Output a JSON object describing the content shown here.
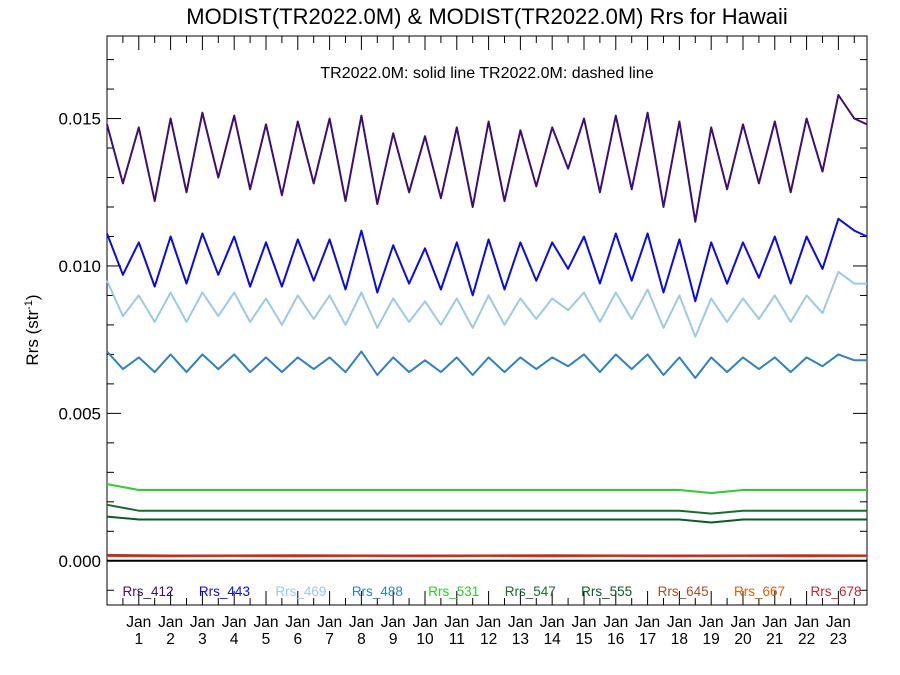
{
  "chart_data": {
    "type": "line",
    "title": "MODIST(TR2022.0M) & MODIST(TR2022.0M)  Rrs for Hawaii",
    "note": "TR2022.0M: solid line   TR2022.0M: dashed line",
    "ylabel": "Rrs (str",
    "ylabel_sup": "-1",
    "ylabel_close": ")",
    "xlabel": "",
    "ylim": [
      -0.0015,
      0.0178
    ],
    "xlim": [
      0,
      23.9
    ],
    "yticks": [
      {
        "value": 0.0,
        "label": "0.000"
      },
      {
        "value": 0.005,
        "label": "0.005"
      },
      {
        "value": 0.01,
        "label": "0.010"
      },
      {
        "value": 0.015,
        "label": "0.015"
      }
    ],
    "xticks": [
      {
        "value": 1,
        "month": "Jan",
        "year": "1"
      },
      {
        "value": 2,
        "month": "Jan",
        "year": "2"
      },
      {
        "value": 3,
        "month": "Jan",
        "year": "3"
      },
      {
        "value": 4,
        "month": "Jan",
        "year": "4"
      },
      {
        "value": 5,
        "month": "Jan",
        "year": "5"
      },
      {
        "value": 6,
        "month": "Jan",
        "year": "6"
      },
      {
        "value": 7,
        "month": "Jan",
        "year": "7"
      },
      {
        "value": 8,
        "month": "Jan",
        "year": "8"
      },
      {
        "value": 9,
        "month": "Jan",
        "year": "9"
      },
      {
        "value": 10,
        "month": "Jan",
        "year": "10"
      },
      {
        "value": 11,
        "month": "Jan",
        "year": "11"
      },
      {
        "value": 12,
        "month": "Jan",
        "year": "12"
      },
      {
        "value": 13,
        "month": "Jan",
        "year": "13"
      },
      {
        "value": 14,
        "month": "Jan",
        "year": "14"
      },
      {
        "value": 15,
        "month": "Jan",
        "year": "15"
      },
      {
        "value": 16,
        "month": "Jan",
        "year": "16"
      },
      {
        "value": 17,
        "month": "Jan",
        "year": "17"
      },
      {
        "value": 18,
        "month": "Jan",
        "year": "18"
      },
      {
        "value": 19,
        "month": "Jan",
        "year": "19"
      },
      {
        "value": 20,
        "month": "Jan",
        "year": "20"
      },
      {
        "value": 21,
        "month": "Jan",
        "year": "21"
      },
      {
        "value": 22,
        "month": "Jan",
        "year": "22"
      },
      {
        "value": 23,
        "month": "Jan",
        "year": "23"
      }
    ],
    "zero_line": 0.0,
    "grid": false,
    "legend_position": "bottom-inside",
    "series": [
      {
        "name": "Rrs_412",
        "color": "#3d0f73",
        "x": [
          0,
          0.5,
          1,
          1.5,
          2,
          2.5,
          3,
          3.5,
          4,
          4.5,
          5,
          5.5,
          6,
          6.5,
          7,
          7.5,
          8,
          8.5,
          9,
          9.5,
          10,
          10.5,
          11,
          11.5,
          12,
          12.5,
          13,
          13.5,
          14,
          14.5,
          15,
          15.5,
          16,
          16.5,
          17,
          17.5,
          18,
          18.5,
          19,
          19.5,
          20,
          20.5,
          21,
          21.5,
          22,
          22.5,
          23,
          23.5,
          23.9
        ],
        "y": [
          0.0148,
          0.0128,
          0.0147,
          0.0122,
          0.015,
          0.0125,
          0.0152,
          0.013,
          0.0151,
          0.0126,
          0.0148,
          0.0124,
          0.0149,
          0.0128,
          0.015,
          0.0122,
          0.0151,
          0.0121,
          0.0145,
          0.0125,
          0.0144,
          0.0123,
          0.0147,
          0.012,
          0.0149,
          0.0122,
          0.0146,
          0.0127,
          0.0147,
          0.0133,
          0.015,
          0.0125,
          0.0151,
          0.0126,
          0.0152,
          0.012,
          0.0149,
          0.0115,
          0.0147,
          0.0126,
          0.0148,
          0.0128,
          0.0149,
          0.0125,
          0.015,
          0.0132,
          0.0158,
          0.015,
          0.0148
        ]
      },
      {
        "name": "Rrs_443",
        "color": "#0a0ae6",
        "x": [
          0,
          0.5,
          1,
          1.5,
          2,
          2.5,
          3,
          3.5,
          4,
          4.5,
          5,
          5.5,
          6,
          6.5,
          7,
          7.5,
          8,
          8.5,
          9,
          9.5,
          10,
          10.5,
          11,
          11.5,
          12,
          12.5,
          13,
          13.5,
          14,
          14.5,
          15,
          15.5,
          16,
          16.5,
          17,
          17.5,
          18,
          18.5,
          19,
          19.5,
          20,
          20.5,
          21,
          21.5,
          22,
          22.5,
          23,
          23.5,
          23.9
        ],
        "y": [
          0.0111,
          0.0097,
          0.0108,
          0.0093,
          0.011,
          0.0094,
          0.0111,
          0.0097,
          0.011,
          0.0093,
          0.0108,
          0.0093,
          0.0109,
          0.0095,
          0.0109,
          0.0092,
          0.0112,
          0.0091,
          0.0107,
          0.0094,
          0.0106,
          0.0092,
          0.0108,
          0.009,
          0.0109,
          0.0092,
          0.0108,
          0.0095,
          0.0108,
          0.0099,
          0.011,
          0.0094,
          0.0111,
          0.0095,
          0.0111,
          0.0091,
          0.0109,
          0.0088,
          0.0108,
          0.0094,
          0.0108,
          0.0096,
          0.011,
          0.0094,
          0.011,
          0.0099,
          0.0116,
          0.0112,
          0.011
        ]
      },
      {
        "name": "Rrs_469",
        "color": "#9ecae1",
        "x": [
          0,
          0.5,
          1,
          1.5,
          2,
          2.5,
          3,
          3.5,
          4,
          4.5,
          5,
          5.5,
          6,
          6.5,
          7,
          7.5,
          8,
          8.5,
          9,
          9.5,
          10,
          10.5,
          11,
          11.5,
          12,
          12.5,
          13,
          13.5,
          14,
          14.5,
          15,
          15.5,
          16,
          16.5,
          17,
          17.5,
          18,
          18.5,
          19,
          19.5,
          20,
          20.5,
          21,
          21.5,
          22,
          22.5,
          23,
          23.5,
          23.9
        ],
        "y": [
          0.0095,
          0.0083,
          0.009,
          0.0081,
          0.0091,
          0.0081,
          0.0091,
          0.0083,
          0.0091,
          0.0081,
          0.0089,
          0.008,
          0.009,
          0.0082,
          0.009,
          0.008,
          0.0091,
          0.0079,
          0.0089,
          0.0081,
          0.0088,
          0.008,
          0.0089,
          0.0079,
          0.009,
          0.008,
          0.0089,
          0.0082,
          0.0089,
          0.0085,
          0.0091,
          0.0081,
          0.0091,
          0.0082,
          0.0092,
          0.0079,
          0.009,
          0.0076,
          0.0089,
          0.0081,
          0.0089,
          0.0082,
          0.009,
          0.0081,
          0.009,
          0.0084,
          0.0098,
          0.0094,
          0.0094
        ]
      },
      {
        "name": "Rrs_488",
        "color": "#3182bd",
        "x": [
          0,
          0.5,
          1,
          1.5,
          2,
          2.5,
          3,
          3.5,
          4,
          4.5,
          5,
          5.5,
          6,
          6.5,
          7,
          7.5,
          8,
          8.5,
          9,
          9.5,
          10,
          10.5,
          11,
          11.5,
          12,
          12.5,
          13,
          13.5,
          14,
          14.5,
          15,
          15.5,
          16,
          16.5,
          17,
          17.5,
          18,
          18.5,
          19,
          19.5,
          20,
          20.5,
          21,
          21.5,
          22,
          22.5,
          23,
          23.5,
          23.9
        ],
        "y": [
          0.0071,
          0.0065,
          0.0069,
          0.0064,
          0.007,
          0.0064,
          0.007,
          0.0065,
          0.007,
          0.0064,
          0.0069,
          0.0064,
          0.0069,
          0.0065,
          0.0069,
          0.0064,
          0.0071,
          0.0063,
          0.0069,
          0.0064,
          0.0068,
          0.0064,
          0.0069,
          0.0063,
          0.0069,
          0.0064,
          0.0069,
          0.0065,
          0.0069,
          0.0066,
          0.007,
          0.0064,
          0.007,
          0.0065,
          0.007,
          0.0063,
          0.0069,
          0.0062,
          0.0069,
          0.0064,
          0.0069,
          0.0065,
          0.0069,
          0.0064,
          0.0069,
          0.0066,
          0.007,
          0.0068,
          0.0068
        ]
      },
      {
        "name": "Rrs_531",
        "color": "#2ecc2e",
        "x": [
          0,
          1,
          2,
          3,
          4,
          5,
          6,
          7,
          8,
          9,
          10,
          11,
          12,
          13,
          14,
          15,
          16,
          17,
          18,
          19,
          20,
          21,
          22,
          23,
          23.9
        ],
        "y": [
          0.0026,
          0.0024,
          0.0024,
          0.0024,
          0.0024,
          0.0024,
          0.0024,
          0.0024,
          0.0024,
          0.0024,
          0.0024,
          0.0024,
          0.0024,
          0.0024,
          0.0024,
          0.0024,
          0.0024,
          0.0024,
          0.0024,
          0.0023,
          0.0024,
          0.0024,
          0.0024,
          0.0024,
          0.0024
        ]
      },
      {
        "name": "Rrs_547",
        "color": "#1a6b2e",
        "x": [
          0,
          1,
          2,
          3,
          4,
          5,
          6,
          7,
          8,
          9,
          10,
          11,
          12,
          13,
          14,
          15,
          16,
          17,
          18,
          19,
          20,
          21,
          22,
          23,
          23.9
        ],
        "y": [
          0.0019,
          0.0017,
          0.0017,
          0.0017,
          0.0017,
          0.0017,
          0.0017,
          0.0017,
          0.0017,
          0.0017,
          0.0017,
          0.0017,
          0.0017,
          0.0017,
          0.0017,
          0.0017,
          0.0017,
          0.0017,
          0.0017,
          0.0016,
          0.0017,
          0.0017,
          0.0017,
          0.0017,
          0.0017
        ]
      },
      {
        "name": "Rrs_555",
        "color": "#0b5a2a",
        "x": [
          0,
          1,
          2,
          3,
          4,
          5,
          6,
          7,
          8,
          9,
          10,
          11,
          12,
          13,
          14,
          15,
          16,
          17,
          18,
          19,
          20,
          21,
          22,
          23,
          23.9
        ],
        "y": [
          0.0015,
          0.0014,
          0.0014,
          0.0014,
          0.0014,
          0.0014,
          0.0014,
          0.0014,
          0.0014,
          0.0014,
          0.0014,
          0.0014,
          0.0014,
          0.0014,
          0.0014,
          0.0014,
          0.0014,
          0.0014,
          0.0014,
          0.0013,
          0.0014,
          0.0014,
          0.0014,
          0.0014,
          0.0014
        ]
      },
      {
        "name": "Rrs_645",
        "color": "#a0522d",
        "x": [
          0,
          2,
          4,
          6,
          8,
          10,
          12,
          14,
          16,
          18,
          20,
          22,
          23.9
        ],
        "y": [
          0.0002,
          0.00018,
          0.00018,
          0.00019,
          0.00018,
          0.00018,
          0.00018,
          0.00019,
          0.00018,
          0.00018,
          0.00018,
          0.00019,
          0.00018
        ]
      },
      {
        "name": "Rrs_667",
        "color": "#d95f0e",
        "x": [
          0,
          2,
          4,
          6,
          8,
          10,
          12,
          14,
          16,
          18,
          20,
          22,
          23.9
        ],
        "y": [
          0.00016,
          0.00015,
          0.00016,
          0.00015,
          0.00016,
          0.00015,
          0.00016,
          0.00015,
          0.00016,
          0.00015,
          0.00016,
          0.00015,
          0.00016
        ]
      },
      {
        "name": "Rrs_678",
        "color": "#c0272d",
        "x": [
          0,
          2,
          4,
          6,
          8,
          10,
          12,
          14,
          16,
          18,
          20,
          22,
          23.9
        ],
        "y": [
          0.00018,
          0.00017,
          0.00018,
          0.00017,
          0.00018,
          0.00017,
          0.00018,
          0.00017,
          0.00018,
          0.00017,
          0.00018,
          0.00017,
          0.00018
        ]
      }
    ]
  }
}
